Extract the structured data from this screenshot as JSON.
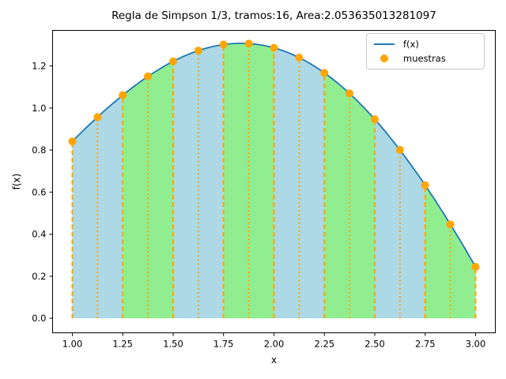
{
  "title": "Regla de Simpson 1/3, tramos:16, Area:2.053635013281097",
  "legend": {
    "position": "upper-right",
    "items": [
      {
        "label": "f(x)",
        "type": "line"
      },
      {
        "label": "muestras",
        "type": "marker"
      }
    ]
  },
  "chart_data": {
    "type": "line",
    "title": "Regla de Simpson 1/3, tramos:16, Area:2.053635013281097",
    "xlabel": "x",
    "ylabel": "f(x)",
    "xlim": [
      0.902,
      3.098
    ],
    "ylim": [
      -0.069,
      1.369
    ],
    "grid": false,
    "x_ticks": {
      "values": [
        1.0,
        1.25,
        1.5,
        1.75,
        2.0,
        2.25,
        2.5,
        2.75,
        3.0
      ],
      "labels": [
        "1.00",
        "1.25",
        "1.50",
        "1.75",
        "2.00",
        "2.25",
        "2.50",
        "2.75",
        "3.00"
      ]
    },
    "y_ticks": {
      "values": [
        0.0,
        0.2,
        0.4,
        0.6,
        0.8,
        1.0,
        1.2
      ],
      "labels": [
        "0.0",
        "0.2",
        "0.4",
        "0.6",
        "0.8",
        "1.0",
        "1.2"
      ]
    },
    "curve": {
      "name": "f(x)",
      "expr": "sqrt(x)*sin(x)",
      "x_min": 1.0,
      "x_max": 3.0,
      "color": "#1f77b4",
      "line_width": 1.8
    },
    "samples": {
      "name": "muestras",
      "color": "#FFA500",
      "marker_radius": 5,
      "x": [
        1.0,
        1.125,
        1.25,
        1.375,
        1.5,
        1.625,
        1.75,
        1.875,
        2.0,
        2.125,
        2.25,
        2.375,
        2.5,
        2.625,
        2.75,
        2.875,
        3.0
      ],
      "y": [
        0.8415,
        0.9568,
        1.061,
        1.1502,
        1.2217,
        1.2729,
        1.3017,
        1.3064,
        1.2859,
        1.2398,
        1.1674,
        1.0693,
        0.9463,
        0.8004,
        0.6328,
        0.4466,
        0.2444
      ]
    },
    "simpson": {
      "tramos": 16,
      "area": 2.053635013281097,
      "fill_colors": [
        "#ADD8E6",
        "#90EE90"
      ],
      "boundary_line_style": "dashed",
      "mid_line_style": "dotted",
      "line_color": "#FFA500",
      "line_width": 2
    }
  }
}
